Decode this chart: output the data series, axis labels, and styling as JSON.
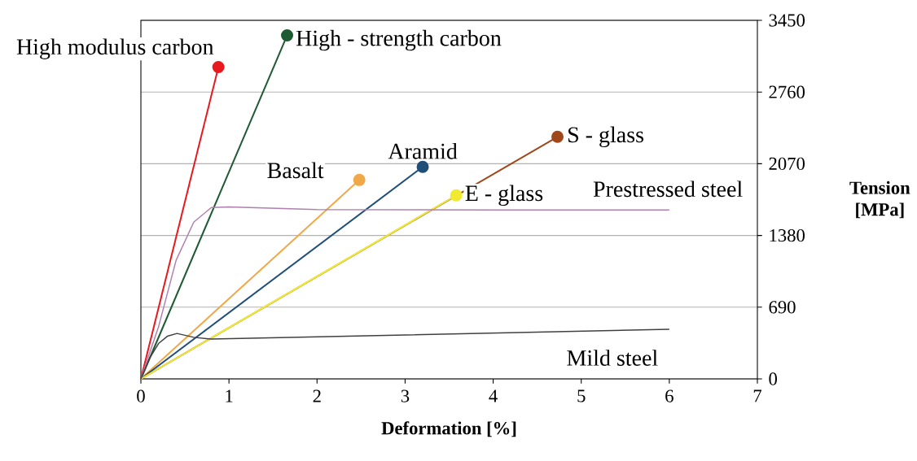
{
  "chart_data": {
    "type": "line",
    "xlabel": "Deformation [%]",
    "ylabel": "Tension [MPa]",
    "xlim": [
      0,
      7
    ],
    "xticks": [
      0,
      1,
      2,
      3,
      4,
      5,
      6,
      7
    ],
    "ylim": [
      0,
      3450
    ],
    "yticks": [
      0,
      690,
      1380,
      2070,
      2760,
      3450
    ],
    "grid": "y",
    "legend": false,
    "marker": "circle",
    "series": [
      {
        "name": "High modulus carbon",
        "color": "#e8191f",
        "x": [
          0,
          0.88
        ],
        "values": [
          0,
          3000
        ]
      },
      {
        "name": "High - strength carbon",
        "color": "#1e5a32",
        "x": [
          0,
          1.66
        ],
        "values": [
          0,
          3305
        ]
      },
      {
        "name": "Basalt",
        "color": "#f0a848",
        "x": [
          0,
          2.48
        ],
        "values": [
          0,
          1914
        ]
      },
      {
        "name": "Aramid",
        "color": "#1f4e79",
        "x": [
          0,
          3.2
        ],
        "values": [
          0,
          2040
        ]
      },
      {
        "name": "S - glass",
        "color": "#a0481c",
        "x": [
          0,
          4.73
        ],
        "values": [
          0,
          2329
        ]
      },
      {
        "name": "E - glass",
        "color": "#f0ea30",
        "x": [
          0,
          3.58
        ],
        "values": [
          0,
          1766
        ]
      },
      {
        "name": "Prestressed steel",
        "color": "#b080b0",
        "marker": "none",
        "x": [
          0,
          0.2,
          0.4,
          0.6,
          0.8,
          1.0,
          2.0,
          4.0,
          6.0
        ],
        "values": [
          0,
          500,
          1141,
          1508,
          1649,
          1655,
          1630,
          1625,
          1625
        ]
      },
      {
        "name": "Mild steel",
        "color": "#404040",
        "marker": "none",
        "x": [
          0,
          0.1,
          0.2,
          0.3,
          0.41,
          0.6,
          0.8,
          6.0
        ],
        "values": [
          0,
          200,
          340,
          410,
          437,
          400,
          383,
          477
        ]
      }
    ]
  }
}
